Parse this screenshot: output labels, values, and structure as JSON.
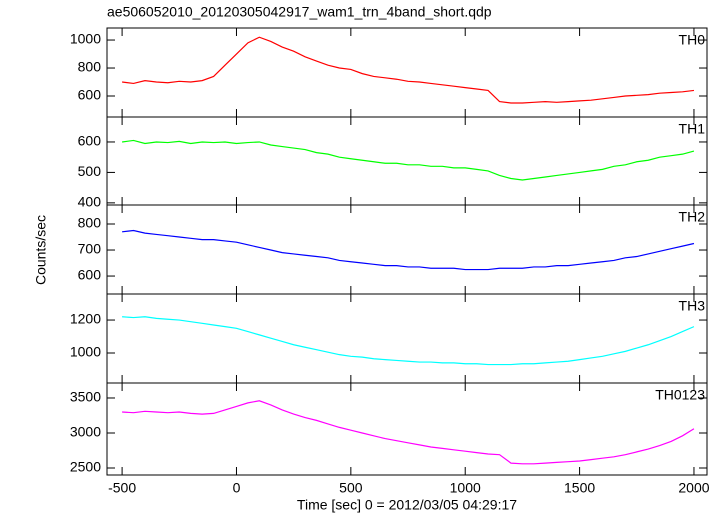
{
  "title": "ae506052010_20120305042917_wam1_trn_4band_short.qdp",
  "x_label": "Time [sec] 0 = 2012/03/05 04:29:17",
  "y_label": "Counts/sec",
  "chart_data": [
    {
      "type": "line",
      "x": [
        -500,
        -450,
        -400,
        -350,
        -300,
        -250,
        -200,
        -150,
        -100,
        -50,
        0,
        50,
        100,
        150,
        200,
        250,
        300,
        350,
        400,
        450,
        500,
        550,
        600,
        650,
        700,
        750,
        800,
        850,
        900,
        950,
        1000,
        1050,
        1100,
        1150,
        1200,
        1250,
        1300,
        1350,
        1400,
        1450,
        1500,
        1550,
        1600,
        1650,
        1700,
        1750,
        1800,
        1850,
        1900,
        1950,
        2000
      ],
      "series": [
        {
          "name": "TH0",
          "color": "#ff0000",
          "values": [
            700,
            690,
            710,
            700,
            695,
            705,
            700,
            710,
            740,
            820,
            900,
            980,
            1020,
            990,
            950,
            920,
            880,
            850,
            820,
            800,
            790,
            760,
            740,
            730,
            720,
            705,
            700,
            690,
            680,
            670,
            660,
            650,
            640,
            560,
            550,
            550,
            555,
            560,
            555,
            560,
            565,
            570,
            580,
            590,
            600,
            605,
            610,
            620,
            625,
            630,
            640
          ]
        }
      ],
      "xlim": [
        -566,
        2057
      ],
      "ylim": [
        450,
        1086
      ],
      "yticks": [
        600,
        800,
        1000
      ]
    },
    {
      "type": "line",
      "x": [
        -500,
        -450,
        -400,
        -350,
        -300,
        -250,
        -200,
        -150,
        -100,
        -50,
        0,
        50,
        100,
        150,
        200,
        250,
        300,
        350,
        400,
        450,
        500,
        550,
        600,
        650,
        700,
        750,
        800,
        850,
        900,
        950,
        1000,
        1050,
        1100,
        1150,
        1200,
        1250,
        1300,
        1350,
        1400,
        1450,
        1500,
        1550,
        1600,
        1650,
        1700,
        1750,
        1800,
        1850,
        1900,
        1950,
        2000
      ],
      "series": [
        {
          "name": "TH1",
          "color": "#00ff00",
          "values": [
            600,
            605,
            595,
            600,
            598,
            602,
            595,
            600,
            598,
            600,
            595,
            598,
            600,
            590,
            585,
            580,
            575,
            565,
            560,
            550,
            545,
            540,
            535,
            530,
            530,
            525,
            525,
            520,
            520,
            515,
            515,
            510,
            505,
            490,
            480,
            475,
            480,
            485,
            490,
            495,
            500,
            505,
            510,
            520,
            525,
            535,
            540,
            550,
            555,
            560,
            570
          ]
        }
      ],
      "xlim": [
        -566,
        2057
      ],
      "ylim": [
        393,
        682
      ],
      "yticks": [
        400,
        500,
        600
      ]
    },
    {
      "type": "line",
      "x": [
        -500,
        -450,
        -400,
        -350,
        -300,
        -250,
        -200,
        -150,
        -100,
        -50,
        0,
        50,
        100,
        150,
        200,
        250,
        300,
        350,
        400,
        450,
        500,
        550,
        600,
        650,
        700,
        750,
        800,
        850,
        900,
        950,
        1000,
        1050,
        1100,
        1150,
        1200,
        1250,
        1300,
        1350,
        1400,
        1450,
        1500,
        1550,
        1600,
        1650,
        1700,
        1750,
        1800,
        1850,
        1900,
        1950,
        2000
      ],
      "series": [
        {
          "name": "TH2",
          "color": "#0000ff",
          "values": [
            770,
            775,
            765,
            760,
            755,
            750,
            745,
            740,
            740,
            735,
            730,
            720,
            710,
            700,
            690,
            685,
            680,
            675,
            670,
            660,
            655,
            650,
            645,
            640,
            640,
            635,
            635,
            630,
            630,
            630,
            625,
            625,
            625,
            630,
            630,
            630,
            635,
            635,
            640,
            640,
            645,
            650,
            655,
            660,
            670,
            675,
            685,
            695,
            705,
            715,
            725
          ]
        }
      ],
      "xlim": [
        -566,
        2057
      ],
      "ylim": [
        531,
        873
      ],
      "yticks": [
        600,
        700,
        800
      ]
    },
    {
      "type": "line",
      "x": [
        -500,
        -450,
        -400,
        -350,
        -300,
        -250,
        -200,
        -150,
        -100,
        -50,
        0,
        50,
        100,
        150,
        200,
        250,
        300,
        350,
        400,
        450,
        500,
        550,
        600,
        650,
        700,
        750,
        800,
        850,
        900,
        950,
        1000,
        1050,
        1100,
        1150,
        1200,
        1250,
        1300,
        1350,
        1400,
        1450,
        1500,
        1550,
        1600,
        1650,
        1700,
        1750,
        1800,
        1850,
        1900,
        1950,
        2000
      ],
      "series": [
        {
          "name": "TH3",
          "color": "#00ffff",
          "values": [
            1220,
            1215,
            1220,
            1210,
            1205,
            1200,
            1190,
            1180,
            1170,
            1160,
            1150,
            1130,
            1110,
            1090,
            1070,
            1050,
            1035,
            1020,
            1005,
            990,
            980,
            975,
            965,
            960,
            955,
            950,
            945,
            945,
            940,
            940,
            935,
            935,
            930,
            930,
            930,
            935,
            935,
            940,
            945,
            950,
            960,
            970,
            980,
            995,
            1010,
            1030,
            1050,
            1075,
            1100,
            1130,
            1160
          ]
        }
      ],
      "xlim": [
        -566,
        2057
      ],
      "ylim": [
        818,
        1358
      ],
      "yticks": [
        1000,
        1200
      ]
    },
    {
      "type": "line",
      "x": [
        -500,
        -450,
        -400,
        -350,
        -300,
        -250,
        -200,
        -150,
        -100,
        -50,
        0,
        50,
        100,
        150,
        200,
        250,
        300,
        350,
        400,
        450,
        500,
        550,
        600,
        650,
        700,
        750,
        800,
        850,
        900,
        950,
        1000,
        1050,
        1100,
        1150,
        1200,
        1250,
        1300,
        1350,
        1400,
        1450,
        1500,
        1550,
        1600,
        1650,
        1700,
        1750,
        1800,
        1850,
        1900,
        1950,
        2000
      ],
      "series": [
        {
          "name": "TH0123",
          "color": "#ff00ff",
          "values": [
            3300,
            3290,
            3310,
            3300,
            3290,
            3300,
            3280,
            3270,
            3280,
            3330,
            3380,
            3430,
            3460,
            3400,
            3330,
            3270,
            3220,
            3180,
            3130,
            3080,
            3040,
            3000,
            2960,
            2920,
            2890,
            2860,
            2830,
            2800,
            2780,
            2760,
            2740,
            2720,
            2700,
            2690,
            2570,
            2560,
            2560,
            2570,
            2580,
            2590,
            2600,
            2620,
            2640,
            2660,
            2690,
            2730,
            2770,
            2820,
            2880,
            2960,
            3060
          ]
        }
      ],
      "xlim": [
        -566,
        2057
      ],
      "ylim": [
        2400,
        3714
      ],
      "yticks": [
        2500,
        3000,
        3500
      ],
      "xticks": [
        -500,
        0,
        500,
        1000,
        1500,
        2000
      ]
    }
  ]
}
